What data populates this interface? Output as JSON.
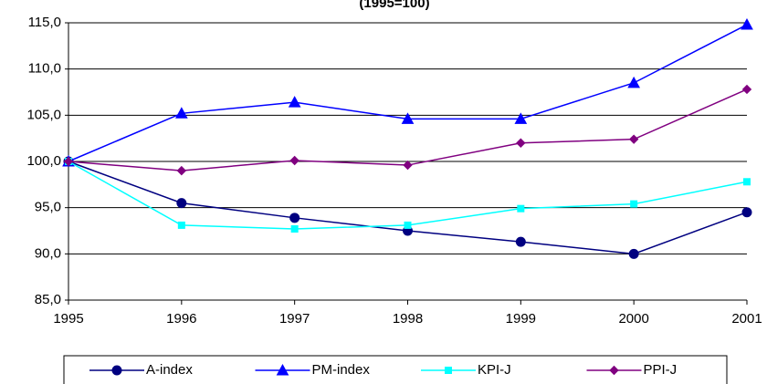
{
  "chart_data": {
    "type": "line",
    "title": "(1995=100)",
    "categories": [
      "1995",
      "1996",
      "1997",
      "1998",
      "1999",
      "2000",
      "2001"
    ],
    "series": [
      {
        "name": "A-index",
        "color": "#000080",
        "marker": "circle",
        "values": [
          100,
          95.5,
          93.9,
          92.5,
          91.3,
          90.0,
          94.5
        ]
      },
      {
        "name": "PM-index",
        "color": "#0000ff",
        "marker": "triangle",
        "values": [
          100,
          105.2,
          106.4,
          104.6,
          104.6,
          108.5,
          114.8
        ]
      },
      {
        "name": "KPI-J",
        "color": "#00ffff",
        "marker": "square",
        "values": [
          100,
          93.1,
          92.7,
          93.1,
          94.9,
          95.4,
          97.8
        ]
      },
      {
        "name": "PPI-J",
        "color": "#800080",
        "marker": "diamond",
        "values": [
          100,
          99.0,
          100.1,
          99.6,
          102.0,
          102.4,
          107.8
        ]
      }
    ],
    "ylim": [
      85,
      115
    ],
    "yticks": [
      {
        "value": 85,
        "label": "85,0"
      },
      {
        "value": 90,
        "label": "90,0"
      },
      {
        "value": 95,
        "label": "95,0"
      },
      {
        "value": 100,
        "label": "100,0"
      },
      {
        "value": 105,
        "label": "105,0"
      },
      {
        "value": 110,
        "label": "110,0"
      },
      {
        "value": 115,
        "label": "115,0"
      }
    ],
    "grid": true,
    "legend": "bottom"
  }
}
